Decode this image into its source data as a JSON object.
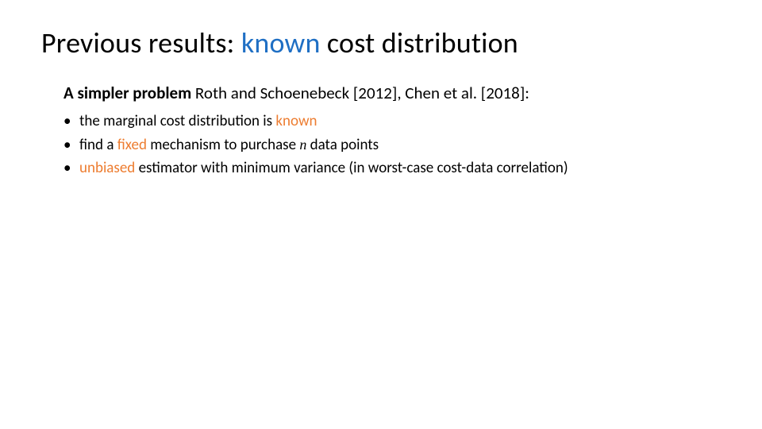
{
  "colors": {
    "title_highlight": "#1f6fc4",
    "emphasis": "#ed7d31",
    "text": "#000000",
    "background": "#ffffff"
  },
  "typography": {
    "title_fontsize": 36,
    "intro_fontsize": 21,
    "bullet_fontsize": 19,
    "font_family": "Calibri"
  },
  "title_pre": "Previous results: ",
  "title_highlight": "known",
  "title_post": " cost distribution",
  "intro_bold": "A simpler problem",
  "intro_rest": " Roth and Schoenebeck [2012], Chen et al. [2018]:",
  "bullets": {
    "b1_pre": "the marginal cost distribution is ",
    "b1_em": "known",
    "b2_pre": "find a ",
    "b2_em": "fixed",
    "b2_mid": " mechanism to purchase ",
    "b2_n": "n",
    "b2_post": " data points",
    "b3_em": "unbiased",
    "b3_rest": " estimator with minimum variance (in worst-case cost-data correlation)"
  }
}
